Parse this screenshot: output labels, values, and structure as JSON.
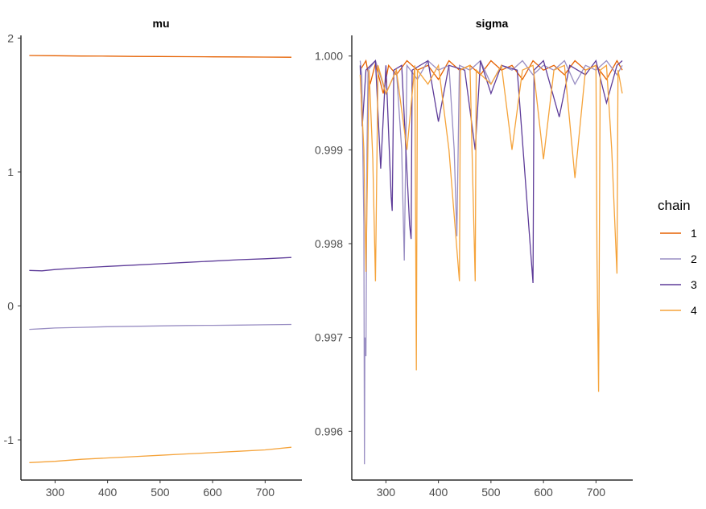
{
  "chart_data": [
    {
      "type": "line",
      "title": "mu",
      "xlim": [
        235,
        770
      ],
      "ylim": [
        -1.3,
        2.02
      ],
      "x_ticks": [
        300,
        400,
        500,
        600,
        700
      ],
      "y_ticks": [
        -1,
        0,
        1,
        2
      ],
      "x_tick_labels": [
        "300",
        "400",
        "500",
        "600",
        "700"
      ],
      "y_tick_labels": [
        "-1",
        "0",
        "1",
        "2"
      ],
      "series": [
        {
          "name": "1",
          "color": "#e66101",
          "points": [
            [
              251,
              1.87
            ],
            [
              300,
              1.868
            ],
            [
              350,
              1.866
            ],
            [
              400,
              1.865
            ],
            [
              450,
              1.863
            ],
            [
              500,
              1.862
            ],
            [
              550,
              1.861
            ],
            [
              600,
              1.86
            ],
            [
              650,
              1.859
            ],
            [
              700,
              1.858
            ],
            [
              750,
              1.857
            ]
          ]
        },
        {
          "name": "2",
          "color": "#998ec3",
          "points": [
            [
              251,
              -0.175
            ],
            [
              275,
              -0.17
            ],
            [
              300,
              -0.165
            ],
            [
              350,
              -0.16
            ],
            [
              400,
              -0.155
            ],
            [
              450,
              -0.152
            ],
            [
              500,
              -0.149
            ],
            [
              550,
              -0.146
            ],
            [
              600,
              -0.145
            ],
            [
              650,
              -0.143
            ],
            [
              700,
              -0.141
            ],
            [
              750,
              -0.138
            ]
          ]
        },
        {
          "name": "3",
          "color": "#5e3c99",
          "points": [
            [
              251,
              0.265
            ],
            [
              275,
              0.262
            ],
            [
              300,
              0.272
            ],
            [
              350,
              0.285
            ],
            [
              400,
              0.295
            ],
            [
              450,
              0.305
            ],
            [
              500,
              0.315
            ],
            [
              550,
              0.325
            ],
            [
              600,
              0.335
            ],
            [
              650,
              0.345
            ],
            [
              700,
              0.352
            ],
            [
              750,
              0.362
            ]
          ]
        },
        {
          "name": "4",
          "color": "#f5a33a",
          "points": [
            [
              251,
              -1.17
            ],
            [
              300,
              -1.16
            ],
            [
              350,
              -1.145
            ],
            [
              400,
              -1.135
            ],
            [
              450,
              -1.125
            ],
            [
              500,
              -1.115
            ],
            [
              550,
              -1.105
            ],
            [
              600,
              -1.095
            ],
            [
              650,
              -1.085
            ],
            [
              700,
              -1.075
            ],
            [
              750,
              -1.055
            ]
          ]
        }
      ]
    },
    {
      "type": "line",
      "title": "sigma",
      "xlim": [
        235,
        770
      ],
      "ylim": [
        0.99548,
        1.00022
      ],
      "x_ticks": [
        300,
        400,
        500,
        600,
        700
      ],
      "y_ticks": [
        0.996,
        0.997,
        0.998,
        0.999,
        1.0
      ],
      "x_tick_labels": [
        "300",
        "400",
        "500",
        "600",
        "700"
      ],
      "y_tick_labels": [
        "0.996",
        "0.997",
        "0.998",
        "0.999",
        "1.000"
      ],
      "series": [
        {
          "name": "1",
          "color": "#e66101",
          "points": [
            [
              251,
              0.99985
            ],
            [
              262,
              0.99995
            ],
            [
              270,
              0.9997
            ],
            [
              280,
              0.99992
            ],
            [
              295,
              0.9996
            ],
            [
              305,
              0.9999
            ],
            [
              320,
              0.9998
            ],
            [
              340,
              0.99995
            ],
            [
              360,
              0.99985
            ],
            [
              380,
              0.9999
            ],
            [
              400,
              0.99975
            ],
            [
              420,
              0.99995
            ],
            [
              440,
              0.99985
            ],
            [
              460,
              0.9999
            ],
            [
              480,
              0.9998
            ],
            [
              500,
              0.99995
            ],
            [
              520,
              0.99985
            ],
            [
              540,
              0.9999
            ],
            [
              560,
              0.99975
            ],
            [
              580,
              0.99995
            ],
            [
              600,
              0.99985
            ],
            [
              620,
              0.9999
            ],
            [
              640,
              0.9998
            ],
            [
              660,
              0.99995
            ],
            [
              680,
              0.99985
            ],
            [
              700,
              0.9999
            ],
            [
              720,
              0.99975
            ],
            [
              740,
              0.99995
            ],
            [
              750,
              0.99985
            ]
          ]
        },
        {
          "name": "2",
          "color": "#998ec3",
          "points": [
            [
              251,
              0.99995
            ],
            [
              254,
              0.9998
            ],
            [
              256,
              0.999
            ],
            [
              258,
              0.9982
            ],
            [
              259,
              0.99565
            ],
            [
              260,
              0.997
            ],
            [
              262,
              0.9968
            ],
            [
              264,
              0.999
            ],
            [
              266,
              0.99985
            ],
            [
              280,
              0.99995
            ],
            [
              300,
              0.9996
            ],
            [
              320,
              0.99985
            ],
            [
              330,
              0.999
            ],
            [
              335,
              0.99782
            ],
            [
              340,
              0.9999
            ],
            [
              360,
              0.99975
            ],
            [
              380,
              0.99995
            ],
            [
              400,
              0.99985
            ],
            [
              420,
              0.9999
            ],
            [
              430,
              0.999
            ],
            [
              435,
              0.99808
            ],
            [
              440,
              0.9999
            ],
            [
              460,
              0.99985
            ],
            [
              480,
              0.99995
            ],
            [
              500,
              0.9997
            ],
            [
              520,
              0.9999
            ],
            [
              540,
              0.99985
            ],
            [
              560,
              0.99995
            ],
            [
              580,
              0.9998
            ],
            [
              600,
              0.9999
            ],
            [
              620,
              0.99985
            ],
            [
              640,
              0.99995
            ],
            [
              660,
              0.9997
            ],
            [
              680,
              0.9999
            ],
            [
              700,
              0.99985
            ],
            [
              720,
              0.99995
            ],
            [
              740,
              0.9998
            ],
            [
              750,
              0.9999
            ]
          ]
        },
        {
          "name": "3",
          "color": "#5e3c99",
          "points": [
            [
              251,
              0.9999
            ],
            [
              255,
              0.99925
            ],
            [
              262,
              0.99985
            ],
            [
              280,
              0.99995
            ],
            [
              290,
              0.9988
            ],
            [
              300,
              0.9999
            ],
            [
              310,
              0.9985
            ],
            [
              312,
              0.99835
            ],
            [
              315,
              0.99985
            ],
            [
              330,
              0.9999
            ],
            [
              345,
              0.9982
            ],
            [
              348,
              0.99805
            ],
            [
              350,
              0.99985
            ],
            [
              380,
              0.99995
            ],
            [
              400,
              0.9993
            ],
            [
              420,
              0.9999
            ],
            [
              450,
              0.99985
            ],
            [
              470,
              0.999
            ],
            [
              480,
              0.99995
            ],
            [
              500,
              0.9996
            ],
            [
              520,
              0.9999
            ],
            [
              550,
              0.99985
            ],
            [
              580,
              0.99758
            ],
            [
              582,
              0.99985
            ],
            [
              600,
              0.99995
            ],
            [
              630,
              0.99935
            ],
            [
              650,
              0.9999
            ],
            [
              680,
              0.9998
            ],
            [
              700,
              0.99995
            ],
            [
              720,
              0.9995
            ],
            [
              740,
              0.9999
            ],
            [
              750,
              0.99995
            ]
          ]
        },
        {
          "name": "4",
          "color": "#f5a33a",
          "points": [
            [
              251,
              0.9998
            ],
            [
              258,
              0.999
            ],
            [
              262,
              0.9977
            ],
            [
              268,
              0.99985
            ],
            [
              275,
              0.9989
            ],
            [
              280,
              0.9976
            ],
            [
              285,
              0.9999
            ],
            [
              300,
              0.9996
            ],
            [
              320,
              0.99985
            ],
            [
              340,
              0.999
            ],
            [
              355,
              0.9999
            ],
            [
              358,
              0.99665
            ],
            [
              360,
              0.99985
            ],
            [
              380,
              0.9997
            ],
            [
              400,
              0.9999
            ],
            [
              420,
              0.999
            ],
            [
              440,
              0.9976
            ],
            [
              442,
              0.99985
            ],
            [
              460,
              0.9999
            ],
            [
              470,
              0.9976
            ],
            [
              472,
              0.99985
            ],
            [
              500,
              0.9997
            ],
            [
              520,
              0.9999
            ],
            [
              540,
              0.999
            ],
            [
              560,
              0.99985
            ],
            [
              580,
              0.9999
            ],
            [
              600,
              0.9989
            ],
            [
              620,
              0.99985
            ],
            [
              640,
              0.9999
            ],
            [
              660,
              0.9987
            ],
            [
              680,
              0.99985
            ],
            [
              700,
              0.9999
            ],
            [
              702,
              0.99785
            ],
            [
              705,
              0.99642
            ],
            [
              708,
              0.99985
            ],
            [
              720,
              0.9999
            ],
            [
              730,
              0.999
            ],
            [
              740,
              0.99768
            ],
            [
              742,
              0.99985
            ],
            [
              750,
              0.9996
            ]
          ]
        }
      ]
    }
  ],
  "legend": {
    "title": "chain",
    "placement": "right",
    "entries": [
      {
        "label": "1",
        "color": "#e66101"
      },
      {
        "label": "2",
        "color": "#998ec3"
      },
      {
        "label": "3",
        "color": "#5e3c99"
      },
      {
        "label": "4",
        "color": "#f5a33a"
      }
    ]
  }
}
